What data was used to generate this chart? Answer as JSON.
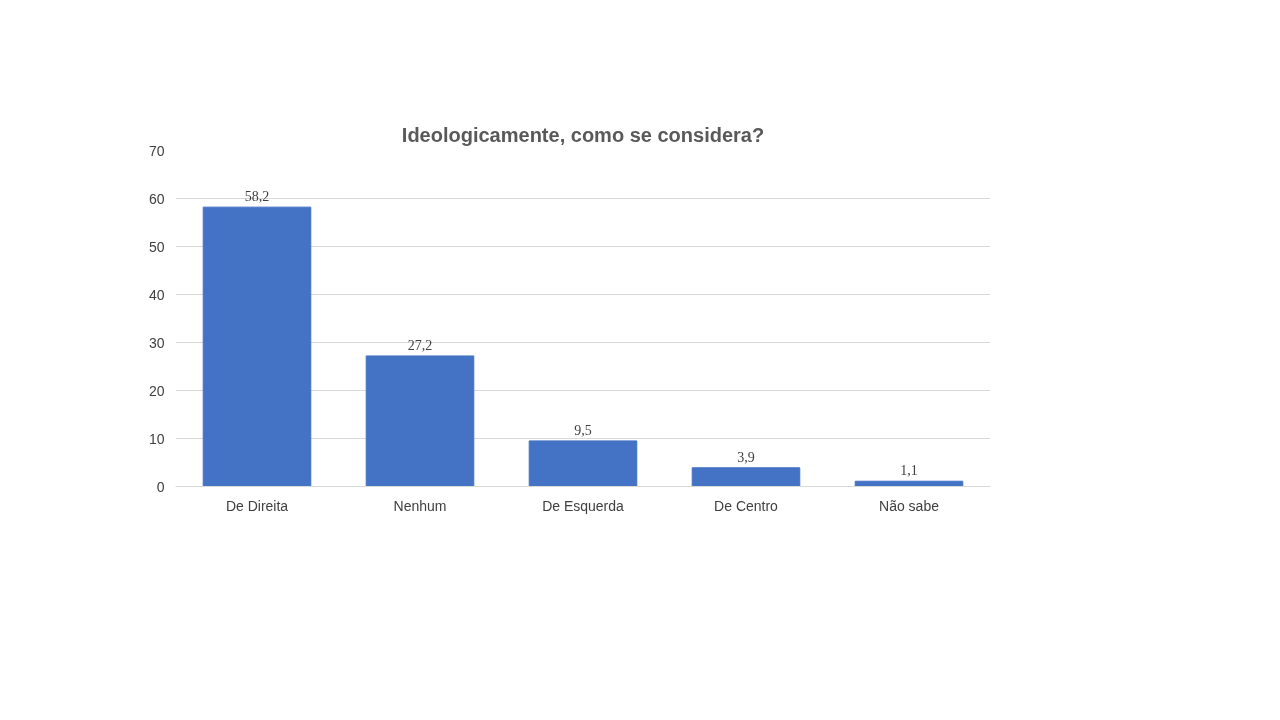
{
  "chart_data": {
    "type": "bar",
    "title": "Ideologicamente, como se considera?",
    "categories": [
      "De Direita",
      "Nenhum",
      "De Esquerda",
      "De Centro",
      "Não sabe"
    ],
    "values": [
      58.2,
      27.2,
      9.5,
      3.9,
      1.1
    ],
    "value_labels": [
      "58,2",
      "27,2",
      "9,5",
      "3,9",
      "1,1"
    ],
    "color": "#4472c4",
    "ylim": [
      0,
      70
    ],
    "yticks": [
      0,
      10,
      20,
      30,
      40,
      50,
      60,
      70
    ],
    "grid": "y"
  }
}
